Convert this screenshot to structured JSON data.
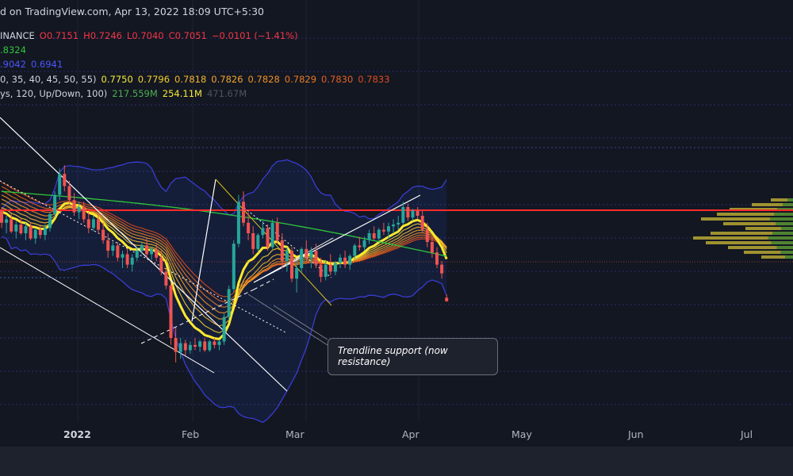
{
  "header": {
    "text": "d on TradingView.com, Apr 13, 2022 18:09 UTC+5:30"
  },
  "legend": {
    "symbol_line": [
      {
        "text": "INANCE",
        "color": "#d1d4dc"
      },
      {
        "text": "O0.7151",
        "color": "#f23645"
      },
      {
        "text": "H0.7246",
        "color": "#f23645"
      },
      {
        "text": "L0.7040",
        "color": "#f23645"
      },
      {
        "text": "C0.7051",
        "color": "#f23645"
      },
      {
        "text": "−0.0101 (−1.41%)",
        "color": "#f23645"
      }
    ],
    "ma_line": [
      {
        "text": ".8324",
        "color": "#2ec73b"
      }
    ],
    "bb_line": [
      {
        "text": ".9042",
        "color": "#4b55ff"
      },
      {
        "text": "0.6941",
        "color": "#4b55ff"
      }
    ],
    "ribbon_line": [
      {
        "text": "0, 35, 40, 45, 50, 55)",
        "color": "#d1d4dc"
      },
      {
        "text": "0.7750",
        "color": "#f5e936"
      },
      {
        "text": "0.7796",
        "color": "#f5d02c"
      },
      {
        "text": "0.7818",
        "color": "#f5b82a"
      },
      {
        "text": "0.7826",
        "color": "#f5a528"
      },
      {
        "text": "0.7828",
        "color": "#f09025"
      },
      {
        "text": "0.7829",
        "color": "#ea7a22"
      },
      {
        "text": "0.7830",
        "color": "#e4621f"
      },
      {
        "text": "0.7833",
        "color": "#de4b1c"
      }
    ],
    "vp_line": [
      {
        "text": "ys, 120, Up/Down, 100)",
        "color": "#d1d4dc"
      },
      {
        "text": "217.559M",
        "color": "#4caf50"
      },
      {
        "text": "254.11M",
        "color": "#f5e936"
      },
      {
        "text": "471.67M",
        "color": "#50535e"
      }
    ]
  },
  "x_axis": {
    "labels": [
      {
        "text": "2022",
        "bold": true
      },
      {
        "text": "Feb",
        "bold": false
      },
      {
        "text": "Mar",
        "bold": false
      },
      {
        "text": "Apr",
        "bold": false
      },
      {
        "text": "May",
        "bold": false
      },
      {
        "text": "Jun",
        "bold": false
      },
      {
        "text": "Jul",
        "bold": false
      }
    ]
  },
  "annotation": {
    "text": "Trendline support (now resistance)"
  },
  "colors": {
    "background": "#131722",
    "up_candle": "#26a69a",
    "down_candle": "#ef5350",
    "resistance_line": "#ff2b2b",
    "bollinger": "#3b3fe0",
    "sma": "#2ec73b",
    "ema_main": "#ffe92e",
    "volume_profile": "#b8a832"
  },
  "chart_data": {
    "type": "candlestick",
    "title": "",
    "xlabel": "",
    "ylabel": "",
    "x_ticks": [
      "2022",
      "Feb",
      "Mar",
      "Apr",
      "May",
      "Jun",
      "Jul"
    ],
    "last_bar": {
      "open": 0.7151,
      "high": 0.7246,
      "low": 0.704,
      "close": 0.7051,
      "change": -0.0101,
      "change_pct": -1.41
    },
    "moving_average": 0.8324,
    "bollinger_bands": [
      0.9042,
      0.6941
    ],
    "ema_ribbon": [
      0.775,
      0.7796,
      0.7818,
      0.7826,
      0.7828,
      0.7829,
      0.783,
      0.7833
    ],
    "volume_profile": {
      "up": "217.559M",
      "down": "254.11M",
      "total": "471.67M"
    },
    "candle_bars": [
      [
        0.965,
        0.975,
        0.915,
        0.93
      ],
      [
        0.93,
        0.95,
        0.9,
        0.94
      ],
      [
        0.94,
        0.955,
        0.9,
        0.905
      ],
      [
        0.905,
        0.935,
        0.885,
        0.925
      ],
      [
        0.925,
        0.945,
        0.895,
        0.9
      ],
      [
        0.9,
        0.93,
        0.88,
        0.92
      ],
      [
        0.92,
        0.93,
        0.88,
        0.885
      ],
      [
        0.885,
        0.915,
        0.87,
        0.91
      ],
      [
        0.91,
        0.925,
        0.885,
        0.895
      ],
      [
        0.895,
        0.925,
        0.88,
        0.915
      ],
      [
        0.915,
        0.96,
        0.905,
        0.955
      ],
      [
        0.955,
        1.02,
        0.945,
        1.01
      ],
      [
        1.01,
        1.085,
        0.995,
        1.07
      ],
      [
        1.07,
        1.095,
        1.02,
        1.035
      ],
      [
        1.035,
        1.05,
        0.985,
        0.995
      ],
      [
        0.995,
        1.015,
        0.95,
        0.96
      ],
      [
        0.96,
        0.99,
        0.94,
        0.975
      ],
      [
        0.975,
        0.99,
        0.93,
        0.94
      ],
      [
        0.94,
        0.96,
        0.9,
        0.915
      ],
      [
        0.915,
        0.95,
        0.905,
        0.94
      ],
      [
        0.94,
        0.955,
        0.9,
        0.91
      ],
      [
        0.91,
        0.93,
        0.87,
        0.88
      ],
      [
        0.88,
        0.9,
        0.83,
        0.85
      ],
      [
        0.85,
        0.875,
        0.835,
        0.865
      ],
      [
        0.865,
        0.875,
        0.82,
        0.83
      ],
      [
        0.83,
        0.85,
        0.8,
        0.84
      ],
      [
        0.84,
        0.855,
        0.8,
        0.81
      ],
      [
        0.81,
        0.84,
        0.79,
        0.83
      ],
      [
        0.83,
        0.86,
        0.82,
        0.85
      ],
      [
        0.85,
        0.875,
        0.84,
        0.865
      ],
      [
        0.865,
        0.885,
        0.83,
        0.84
      ],
      [
        0.84,
        0.86,
        0.825,
        0.855
      ],
      [
        0.855,
        0.87,
        0.82,
        0.83
      ],
      [
        0.83,
        0.85,
        0.78,
        0.79
      ],
      [
        0.79,
        0.8,
        0.74,
        0.75
      ],
      [
        0.75,
        0.76,
        0.58,
        0.6
      ],
      [
        0.6,
        0.63,
        0.53,
        0.56
      ],
      [
        0.56,
        0.6,
        0.54,
        0.585
      ],
      [
        0.585,
        0.595,
        0.55,
        0.565
      ],
      [
        0.565,
        0.59,
        0.555,
        0.58
      ],
      [
        0.58,
        0.6,
        0.565,
        0.575
      ],
      [
        0.575,
        0.595,
        0.56,
        0.59
      ],
      [
        0.59,
        0.6,
        0.56,
        0.565
      ],
      [
        0.565,
        0.595,
        0.56,
        0.59
      ],
      [
        0.59,
        0.6,
        0.57,
        0.58
      ],
      [
        0.58,
        0.595,
        0.565,
        0.59
      ],
      [
        0.59,
        0.67,
        0.58,
        0.66
      ],
      [
        0.66,
        0.75,
        0.65,
        0.74
      ],
      [
        0.74,
        0.88,
        0.73,
        0.87
      ],
      [
        0.87,
        1.01,
        0.86,
        0.99
      ],
      [
        0.99,
        1.02,
        0.92,
        0.93
      ],
      [
        0.93,
        0.96,
        0.88,
        0.9
      ],
      [
        0.9,
        0.92,
        0.84,
        0.855
      ],
      [
        0.855,
        0.9,
        0.845,
        0.895
      ],
      [
        0.895,
        0.935,
        0.885,
        0.915
      ],
      [
        0.915,
        0.925,
        0.85,
        0.86
      ],
      [
        0.86,
        0.94,
        0.855,
        0.93
      ],
      [
        0.93,
        0.945,
        0.87,
        0.88
      ],
      [
        0.88,
        0.9,
        0.8,
        0.82
      ],
      [
        0.82,
        0.86,
        0.79,
        0.85
      ],
      [
        0.85,
        0.86,
        0.76,
        0.77
      ],
      [
        0.77,
        0.82,
        0.73,
        0.8
      ],
      [
        0.8,
        0.86,
        0.79,
        0.855
      ],
      [
        0.855,
        0.88,
        0.82,
        0.83
      ],
      [
        0.83,
        0.86,
        0.8,
        0.85
      ],
      [
        0.85,
        0.87,
        0.8,
        0.81
      ],
      [
        0.81,
        0.83,
        0.76,
        0.775
      ],
      [
        0.775,
        0.82,
        0.765,
        0.81
      ],
      [
        0.81,
        0.84,
        0.78,
        0.79
      ],
      [
        0.79,
        0.82,
        0.78,
        0.815
      ],
      [
        0.815,
        0.84,
        0.8,
        0.83
      ],
      [
        0.83,
        0.85,
        0.8,
        0.81
      ],
      [
        0.81,
        0.84,
        0.795,
        0.835
      ],
      [
        0.835,
        0.87,
        0.825,
        0.865
      ],
      [
        0.865,
        0.89,
        0.85,
        0.86
      ],
      [
        0.86,
        0.89,
        0.85,
        0.88
      ],
      [
        0.88,
        0.91,
        0.87,
        0.9
      ],
      [
        0.9,
        0.92,
        0.88,
        0.885
      ],
      [
        0.885,
        0.915,
        0.875,
        0.91
      ],
      [
        0.91,
        0.93,
        0.895,
        0.905
      ],
      [
        0.905,
        0.93,
        0.885,
        0.92
      ],
      [
        0.92,
        0.94,
        0.9,
        0.925
      ],
      [
        0.925,
        0.95,
        0.91,
        0.93
      ],
      [
        0.93,
        0.99,
        0.925,
        0.975
      ],
      [
        0.975,
        0.985,
        0.935,
        0.945
      ],
      [
        0.945,
        0.97,
        0.935,
        0.965
      ],
      [
        0.965,
        0.975,
        0.94,
        0.95
      ],
      [
        0.95,
        0.965,
        0.9,
        0.91
      ],
      [
        0.91,
        0.93,
        0.86,
        0.875
      ],
      [
        0.875,
        0.89,
        0.83,
        0.845
      ],
      [
        0.845,
        0.86,
        0.8,
        0.81
      ],
      [
        0.81,
        0.82,
        0.77,
        0.785
      ],
      [
        0.7151,
        0.7246,
        0.704,
        0.7051
      ]
    ]
  }
}
